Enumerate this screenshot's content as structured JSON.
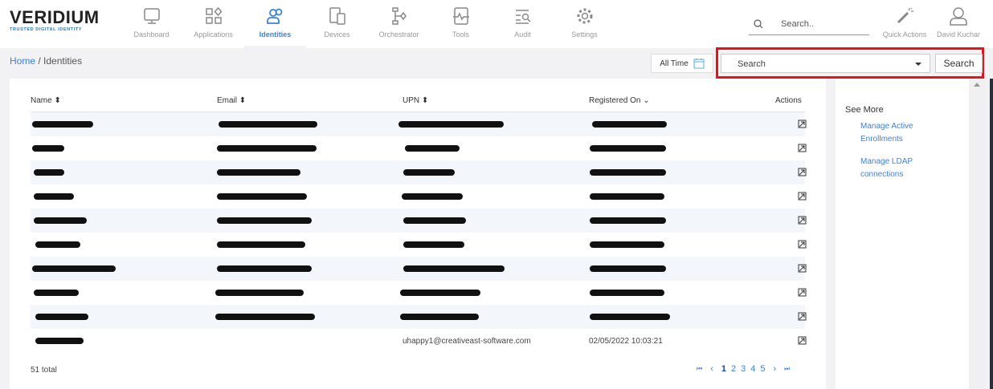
{
  "app": {
    "logo_text": "VERIDIUM",
    "logo_tagline": "TRUSTED DIGITAL IDENTITY",
    "accent": "#3b82e0"
  },
  "nav": [
    {
      "label": "Dashboard",
      "icon": "monitor-icon"
    },
    {
      "label": "Applications",
      "icon": "apps-icon"
    },
    {
      "label": "Identities",
      "icon": "users-icon",
      "active": true
    },
    {
      "label": "Devices",
      "icon": "devices-icon"
    },
    {
      "label": "Orchestrator",
      "icon": "flow-icon"
    },
    {
      "label": "Tools",
      "icon": "pulse-icon"
    },
    {
      "label": "Audit",
      "icon": "audit-icon"
    },
    {
      "label": "Settings",
      "icon": "gear-icon"
    }
  ],
  "header": {
    "search_placeholder": "Search..",
    "quick_actions": "Quick Actions",
    "user": "David Kuchar"
  },
  "breadcrumb": {
    "home": "Home",
    "sep": "/",
    "current": "Identities"
  },
  "filters": {
    "time": "All Time",
    "select_value": "Search",
    "search_button": "Search"
  },
  "table": {
    "columns": [
      "Name",
      "Email",
      "UPN",
      "Registered On",
      "Actions"
    ],
    "rows": [
      {},
      {},
      {},
      {},
      {},
      {},
      {},
      {},
      {},
      {
        "upn": "uhappy1@creativeast-software.com",
        "registered": "02/05/2022 10:03:21"
      }
    ],
    "total": "51 total"
  },
  "pagination": {
    "pages": [
      "1",
      "2",
      "3",
      "4",
      "5"
    ],
    "current": "1"
  },
  "side": {
    "title": "See More",
    "links": [
      "Manage Active Enrollments",
      "Manage LDAP connections"
    ]
  }
}
